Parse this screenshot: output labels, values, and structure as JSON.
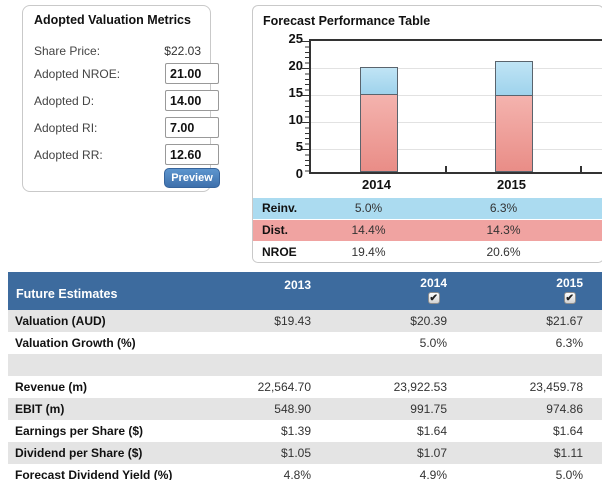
{
  "adopted_metrics": {
    "title": "Adopted Valuation Metrics",
    "share_price_label": "Share Price:",
    "share_price_value": "$22.03",
    "fields": [
      {
        "label": "Adopted NROE:",
        "value": "21.00"
      },
      {
        "label": "Adopted D:",
        "value": "14.00"
      },
      {
        "label": "Adopted RI:",
        "value": "7.00"
      },
      {
        "label": "Adopted RR:",
        "value": "12.60"
      }
    ],
    "preview_label": "Preview"
  },
  "forecast_panel": {
    "title": "Forecast Performance Table",
    "table_rows": [
      {
        "label": "Reinv.",
        "values": [
          "5.0%",
          "6.3%"
        ],
        "bg": "#abdbf0"
      },
      {
        "label": "Dist.",
        "values": [
          "14.4%",
          "14.3%"
        ],
        "bg": "#f0a3a1"
      },
      {
        "label": "NROE",
        "values": [
          "19.4%",
          "20.6%"
        ],
        "bg": "#ffffff"
      }
    ]
  },
  "chart_data": {
    "type": "bar",
    "stacked": true,
    "title": "Forecast Performance Table",
    "categories": [
      "2014",
      "2015"
    ],
    "series": [
      {
        "name": "Dist.",
        "values": [
          14.4,
          14.3
        ],
        "color": "#ee9a93"
      },
      {
        "name": "Reinv.",
        "values": [
          5.0,
          6.3
        ],
        "color": "#aedbf1"
      }
    ],
    "totals_name": "NROE",
    "totals": [
      19.4,
      20.6
    ],
    "ylim": [
      0,
      25
    ],
    "yticks": [
      0,
      5,
      10,
      15,
      20,
      25
    ],
    "xlabel": "",
    "ylabel": "",
    "grid": true,
    "legend_position": "none"
  },
  "future_estimates": {
    "title": "Future Estimates",
    "columns": [
      {
        "label": "2013",
        "has_checkbox": false,
        "checked": false
      },
      {
        "label": "2014",
        "has_checkbox": true,
        "checked": true
      },
      {
        "label": "2015",
        "has_checkbox": true,
        "checked": true
      }
    ],
    "checkmark_glyph": "✔",
    "rows": [
      {
        "label": "Valuation (AUD)",
        "values": [
          "$19.43",
          "$20.39",
          "$21.67"
        ]
      },
      {
        "label": "Valuation Growth (%)",
        "values": [
          "",
          "5.0%",
          "6.3%"
        ]
      },
      {
        "label": "",
        "values": [
          "",
          "",
          ""
        ]
      },
      {
        "label": "Revenue (m)",
        "values": [
          "22,564.70",
          "23,922.53",
          "23,459.78"
        ]
      },
      {
        "label": "EBIT (m)",
        "values": [
          "548.90",
          "991.75",
          "974.86"
        ]
      },
      {
        "label": "Earnings per Share ($)",
        "values": [
          "$1.39",
          "$1.64",
          "$1.64"
        ]
      },
      {
        "label": "Dividend per Share ($)",
        "values": [
          "$1.05",
          "$1.07",
          "$1.11"
        ]
      },
      {
        "label": "Forecast Dividend Yield (%)",
        "values": [
          "4.8%",
          "4.9%",
          "5.0%"
        ]
      }
    ],
    "colors": {
      "header_bg": "#3d6b9e",
      "stripe": "#e4e4e4"
    }
  }
}
